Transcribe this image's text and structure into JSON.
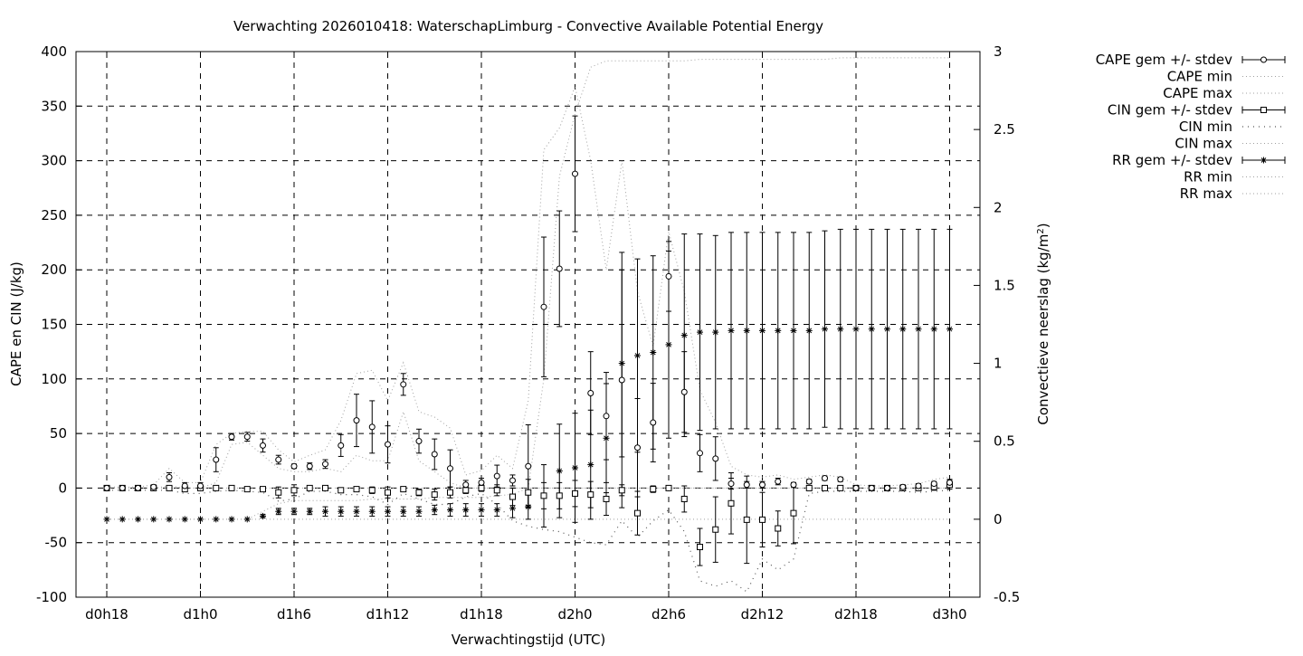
{
  "chart_data": {
    "type": "line",
    "title": "Verwachting 2026010418: WaterschapLimburg - Convective Available Potential Energy",
    "xlabel": "Verwachtingstijd (UTC)",
    "ylabel": "CAPE en CIN (J/kg)",
    "y2label_main": "Convectieve neerslag (kg/m",
    "y2label_sup": "2",
    "y2label_end": ")",
    "ylim": [
      -100,
      400
    ],
    "y2lim": [
      -0.5,
      3
    ],
    "x_ticks": [
      "d0h18",
      "d1h0",
      "d1h6",
      "d1h12",
      "d1h18",
      "d2h0",
      "d2h6",
      "d2h12",
      "d2h18",
      "d3h0"
    ],
    "y_ticks": [
      "400",
      "350",
      "300",
      "250",
      "200",
      "150",
      "100",
      "50",
      "0",
      "-50",
      "-100"
    ],
    "y2_ticks": [
      "3",
      "2.5",
      "2",
      "1.5",
      "1",
      "0.5",
      "0",
      "-0.5"
    ],
    "grid": true,
    "legend_position": "outside-right",
    "legend": [
      "CAPE gem +/- stdev",
      "CAPE min",
      "CAPE max",
      "CIN gem +/- stdev",
      "CIN min",
      "CIN max",
      "RR gem +/- stdev",
      "RR min",
      "RR max"
    ],
    "x_hours": [
      0,
      1,
      2,
      3,
      4,
      5,
      6,
      7,
      8,
      9,
      10,
      11,
      12,
      13,
      14,
      15,
      16,
      17,
      18,
      19,
      20,
      21,
      22,
      23,
      24,
      25,
      26,
      27,
      28,
      29,
      30,
      31,
      32,
      33,
      34,
      35,
      36,
      37,
      38,
      39,
      40,
      41,
      42,
      43,
      44,
      45,
      46,
      47,
      48,
      49,
      50,
      51,
      52,
      53,
      54
    ],
    "cape_mean": [
      0,
      0,
      0,
      1,
      10,
      2,
      2,
      26,
      47,
      47,
      39,
      26,
      20,
      20,
      22,
      39,
      62,
      56,
      40,
      95,
      43,
      31,
      18,
      3,
      5,
      11,
      7,
      20,
      166,
      201,
      288,
      87,
      66,
      99,
      37,
      60,
      194,
      88,
      32,
      27,
      4,
      3,
      3,
      6,
      3,
      6,
      9,
      8,
      0,
      0,
      0,
      1,
      2,
      4,
      5
    ],
    "cape_sd": [
      2,
      2,
      1,
      2,
      4,
      3,
      3,
      11,
      3,
      4,
      6,
      4,
      2,
      3,
      4,
      10,
      24,
      24,
      17,
      10,
      11,
      14,
      17,
      4,
      4,
      10,
      5,
      38,
      64,
      53,
      53,
      38,
      40,
      117,
      45,
      36,
      32,
      37,
      17,
      20,
      5,
      3,
      3,
      3,
      2,
      2,
      2,
      2,
      1,
      1,
      1,
      2,
      2,
      2,
      3
    ],
    "cape_max": [
      1,
      1,
      1,
      3,
      18,
      5,
      5,
      40,
      50,
      52,
      52,
      35,
      24,
      30,
      35,
      62,
      105,
      108,
      80,
      115,
      70,
      65,
      55,
      12,
      16,
      30,
      18,
      80,
      310,
      330,
      368,
      300,
      200,
      300,
      180,
      130,
      235,
      180,
      90,
      60,
      20,
      12,
      10,
      12,
      8,
      10,
      12,
      10,
      3,
      2,
      2,
      3,
      4,
      8,
      10
    ],
    "cape_min": [
      0,
      0,
      0,
      0,
      2,
      0,
      0,
      5,
      40,
      42,
      30,
      18,
      15,
      15,
      18,
      15,
      30,
      25,
      25,
      70,
      25,
      15,
      5,
      0,
      0,
      0,
      0,
      0,
      0,
      0,
      0,
      0,
      0,
      0,
      0,
      0,
      0,
      0,
      0,
      0,
      0,
      0,
      0,
      0,
      0,
      0,
      0,
      0,
      0,
      0,
      0,
      0,
      0,
      0,
      0
    ],
    "cin_mean": [
      0,
      0,
      0,
      0,
      0,
      -1,
      0,
      0,
      0,
      -1,
      -1,
      -4,
      -2,
      0,
      0,
      -2,
      -1,
      -2,
      -4,
      -1,
      -4,
      -6,
      -4,
      -2,
      0,
      -2,
      -8,
      -4,
      -7,
      -7,
      -5,
      -6,
      -10,
      -2,
      -23,
      -1,
      0,
      -10,
      -54,
      -38,
      -14,
      -29,
      -29,
      -37,
      -23,
      0,
      0,
      0,
      0,
      0,
      0,
      0,
      0,
      1,
      3
    ],
    "cin_sd": [
      1,
      1,
      1,
      1,
      1,
      2,
      2,
      1,
      1,
      1,
      1,
      5,
      5,
      1,
      1,
      2,
      2,
      3,
      5,
      2,
      3,
      5,
      5,
      3,
      3,
      5,
      8,
      12,
      12,
      12,
      12,
      12,
      15,
      5,
      20,
      3,
      2,
      12,
      17,
      30,
      28,
      40,
      25,
      16,
      28,
      1,
      1,
      1,
      1,
      1,
      1,
      1,
      2,
      3,
      4
    ],
    "cin_min": [
      -2,
      -2,
      -2,
      -2,
      -2,
      -5,
      -5,
      -3,
      -2,
      -3,
      -4,
      -12,
      -10,
      -3,
      -3,
      -6,
      -6,
      -8,
      -15,
      -5,
      -10,
      -15,
      -15,
      -8,
      -5,
      -15,
      -30,
      -35,
      -38,
      -40,
      -45,
      -50,
      -52,
      -30,
      -45,
      -30,
      -20,
      -40,
      -85,
      -90,
      -85,
      -95,
      -65,
      -75,
      -65,
      -5,
      -3,
      -3,
      -3,
      -3,
      -3,
      -3,
      -4,
      -3,
      -2
    ],
    "cin_max": [
      0,
      0,
      0,
      0,
      0,
      0,
      0,
      0,
      0,
      0,
      0,
      0,
      0,
      0,
      0,
      0,
      0,
      0,
      0,
      0,
      0,
      0,
      0,
      0,
      0,
      0,
      0,
      0,
      0,
      0,
      0,
      0,
      0,
      0,
      0,
      0,
      0,
      0,
      0,
      0,
      0,
      0,
      0,
      0,
      0,
      0,
      0,
      0,
      0,
      0,
      0,
      0,
      0,
      0,
      0
    ],
    "rr_mean": [
      0,
      0,
      0,
      0,
      0,
      0,
      0,
      0,
      0,
      0,
      0.02,
      0.05,
      0.05,
      0.05,
      0.05,
      0.05,
      0.05,
      0.05,
      0.05,
      0.05,
      0.05,
      0.06,
      0.06,
      0.06,
      0.06,
      0.06,
      0.07,
      0.08,
      0.15,
      0.31,
      0.33,
      0.35,
      0.52,
      1.0,
      1.05,
      1.07,
      1.12,
      1.18,
      1.2,
      1.2,
      1.21,
      1.21,
      1.21,
      1.21,
      1.21,
      1.21,
      1.22,
      1.22,
      1.22,
      1.22,
      1.22,
      1.22,
      1.22,
      1.22,
      1.22
    ],
    "rr_sd": [
      0,
      0,
      0,
      0,
      0,
      0,
      0,
      0,
      0,
      0,
      0.01,
      0.02,
      0.02,
      0.02,
      0.03,
      0.03,
      0.03,
      0.03,
      0.03,
      0.03,
      0.03,
      0.03,
      0.04,
      0.04,
      0.04,
      0.04,
      0.06,
      0.08,
      0.2,
      0.3,
      0.35,
      0.35,
      0.35,
      0.6,
      0.62,
      0.62,
      0.6,
      0.65,
      0.63,
      0.62,
      0.63,
      0.63,
      0.63,
      0.63,
      0.63,
      0.63,
      0.63,
      0.64,
      0.64,
      0.64,
      0.64,
      0.64,
      0.64,
      0.64,
      0.64
    ],
    "rr_max": [
      0,
      0,
      0,
      0,
      0,
      0,
      0,
      0,
      0,
      0,
      0.05,
      0.1,
      0.12,
      0.12,
      0.12,
      0.12,
      0.12,
      0.13,
      0.13,
      0.13,
      0.13,
      0.14,
      0.14,
      0.14,
      0.14,
      0.15,
      0.16,
      0.2,
      0.9,
      2.2,
      2.6,
      2.9,
      2.94,
      2.94,
      2.94,
      2.94,
      2.94,
      2.94,
      2.95,
      2.95,
      2.95,
      2.95,
      2.95,
      2.95,
      2.95,
      2.95,
      2.95,
      2.96,
      2.96,
      2.96,
      2.96,
      2.96,
      2.96,
      2.96,
      2.96
    ],
    "rr_min": [
      0,
      0,
      0,
      0,
      0,
      0,
      0,
      0,
      0,
      0,
      0,
      0,
      0,
      0,
      0,
      0,
      0,
      0,
      0,
      0,
      0,
      0,
      0,
      0,
      0,
      0,
      0,
      0,
      0,
      0,
      0,
      0,
      0,
      0,
      0,
      0,
      0,
      0,
      0,
      0,
      0,
      0,
      0,
      0,
      0,
      0,
      0,
      0,
      0,
      0,
      0,
      0,
      0,
      0,
      0
    ]
  }
}
